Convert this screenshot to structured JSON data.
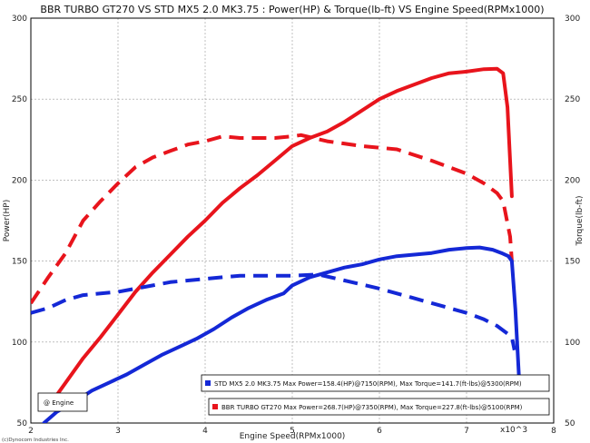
{
  "chart_data": {
    "type": "line",
    "title": "BBR TURBO GT270 VS STD MX5 2.0 MK3.75 : Power(HP) & Torque(lb-ft) VS Engine Speed(RPMx1000)",
    "xlabel": "Engine Speed(RPMx1000)",
    "ylabel_left": "Power(HP)",
    "ylabel_right": "Torque(lb-ft)",
    "x_multiplier_label": "x10^3",
    "xlim": [
      2,
      8
    ],
    "ylim": [
      50,
      300
    ],
    "x_ticks": [
      "2",
      "3",
      "4",
      "5",
      "6",
      "7",
      "8"
    ],
    "y_ticks": [
      "50",
      "100",
      "150",
      "200",
      "250",
      "300"
    ],
    "grid": true,
    "x_tick_values": [
      2,
      3,
      4,
      5,
      6,
      7,
      8
    ],
    "y_tick_values": [
      50,
      100,
      150,
      200,
      250,
      300
    ],
    "series": [
      {
        "name": "BBR TURBO GT270 Power",
        "color": "#e8141c",
        "dash": false,
        "x": [
          2.2,
          2.4,
          2.6,
          2.8,
          3.0,
          3.2,
          3.4,
          3.6,
          3.8,
          4.0,
          4.2,
          4.4,
          4.6,
          4.8,
          5.0,
          5.2,
          5.4,
          5.6,
          5.8,
          6.0,
          6.2,
          6.4,
          6.6,
          6.8,
          7.0,
          7.2,
          7.35,
          7.42,
          7.47,
          7.52
        ],
        "y": [
          60,
          75,
          90,
          103,
          117,
          131,
          143,
          154,
          165,
          175,
          186,
          195,
          203,
          212,
          221,
          226,
          230,
          236,
          243,
          250,
          255,
          259,
          263,
          266,
          267,
          268.5,
          268.7,
          266,
          245,
          190
        ]
      },
      {
        "name": "BBR TURBO GT270 Torque",
        "color": "#e8141c",
        "dash": true,
        "x": [
          2.0,
          2.2,
          2.4,
          2.6,
          2.8,
          3.0,
          3.2,
          3.4,
          3.6,
          3.8,
          4.0,
          4.2,
          4.4,
          4.6,
          4.8,
          5.0,
          5.1,
          5.4,
          5.8,
          6.2,
          6.6,
          7.0,
          7.2,
          7.35,
          7.42,
          7.5,
          7.52
        ],
        "y": [
          124,
          140,
          155,
          175,
          187,
          198,
          208,
          214,
          218,
          222,
          224,
          227,
          226,
          226,
          226,
          227,
          227.8,
          224,
          221,
          219,
          212,
          204,
          198,
          192,
          187,
          165,
          150
        ]
      },
      {
        "name": "STD MX5 2.0 MK3.75 Power",
        "color": "#1428d6",
        "dash": false,
        "x": [
          2.15,
          2.3,
          2.5,
          2.7,
          2.9,
          3.1,
          3.3,
          3.5,
          3.7,
          3.9,
          4.1,
          4.3,
          4.5,
          4.7,
          4.9,
          5.0,
          5.2,
          5.4,
          5.6,
          5.8,
          6.0,
          6.2,
          6.4,
          6.6,
          6.8,
          7.0,
          7.15,
          7.3,
          7.4,
          7.48,
          7.52,
          7.56,
          7.6
        ],
        "y": [
          50,
          57,
          63,
          70,
          75,
          80,
          86,
          92,
          97,
          102,
          108,
          115,
          121,
          126,
          130,
          135,
          140,
          143,
          146,
          148,
          151,
          153,
          154,
          155,
          157,
          158,
          158.4,
          157,
          155,
          153,
          150,
          120,
          80
        ]
      },
      {
        "name": "STD MX5 2.0 MK3.75 Torque",
        "color": "#1428d6",
        "dash": true,
        "x": [
          2.0,
          2.2,
          2.4,
          2.6,
          2.8,
          3.0,
          3.2,
          3.4,
          3.6,
          3.8,
          4.0,
          4.2,
          4.4,
          4.6,
          4.8,
          5.0,
          5.3,
          5.6,
          6.0,
          6.4,
          6.8,
          7.0,
          7.2,
          7.35,
          7.45,
          7.52,
          7.55
        ],
        "y": [
          118,
          121,
          126,
          129,
          130,
          131,
          133,
          135,
          137,
          138,
          139,
          140,
          141,
          141,
          141,
          141,
          141.7,
          138,
          133,
          127,
          121,
          118,
          114,
          110,
          106,
          103,
          95
        ]
      }
    ],
    "legend": {
      "entries": [
        {
          "label": "STD MX5 2.0 MK3.75  Max Power=158.4(HP)@7150(RPM), Max Torque=141.7(ft-lbs)@5300(RPM)",
          "color": "#1428d6"
        },
        {
          "label": "BBR TURBO GT270  Max Power=268.7(HP)@7350(RPM), Max Torque=227.8(ft-lbs)@5100(RPM)",
          "color": "#e8141c"
        }
      ],
      "placement": "bottom-right"
    },
    "engine_tag": "@ Engine",
    "credit": "(c)Dynocom Industries Inc."
  }
}
